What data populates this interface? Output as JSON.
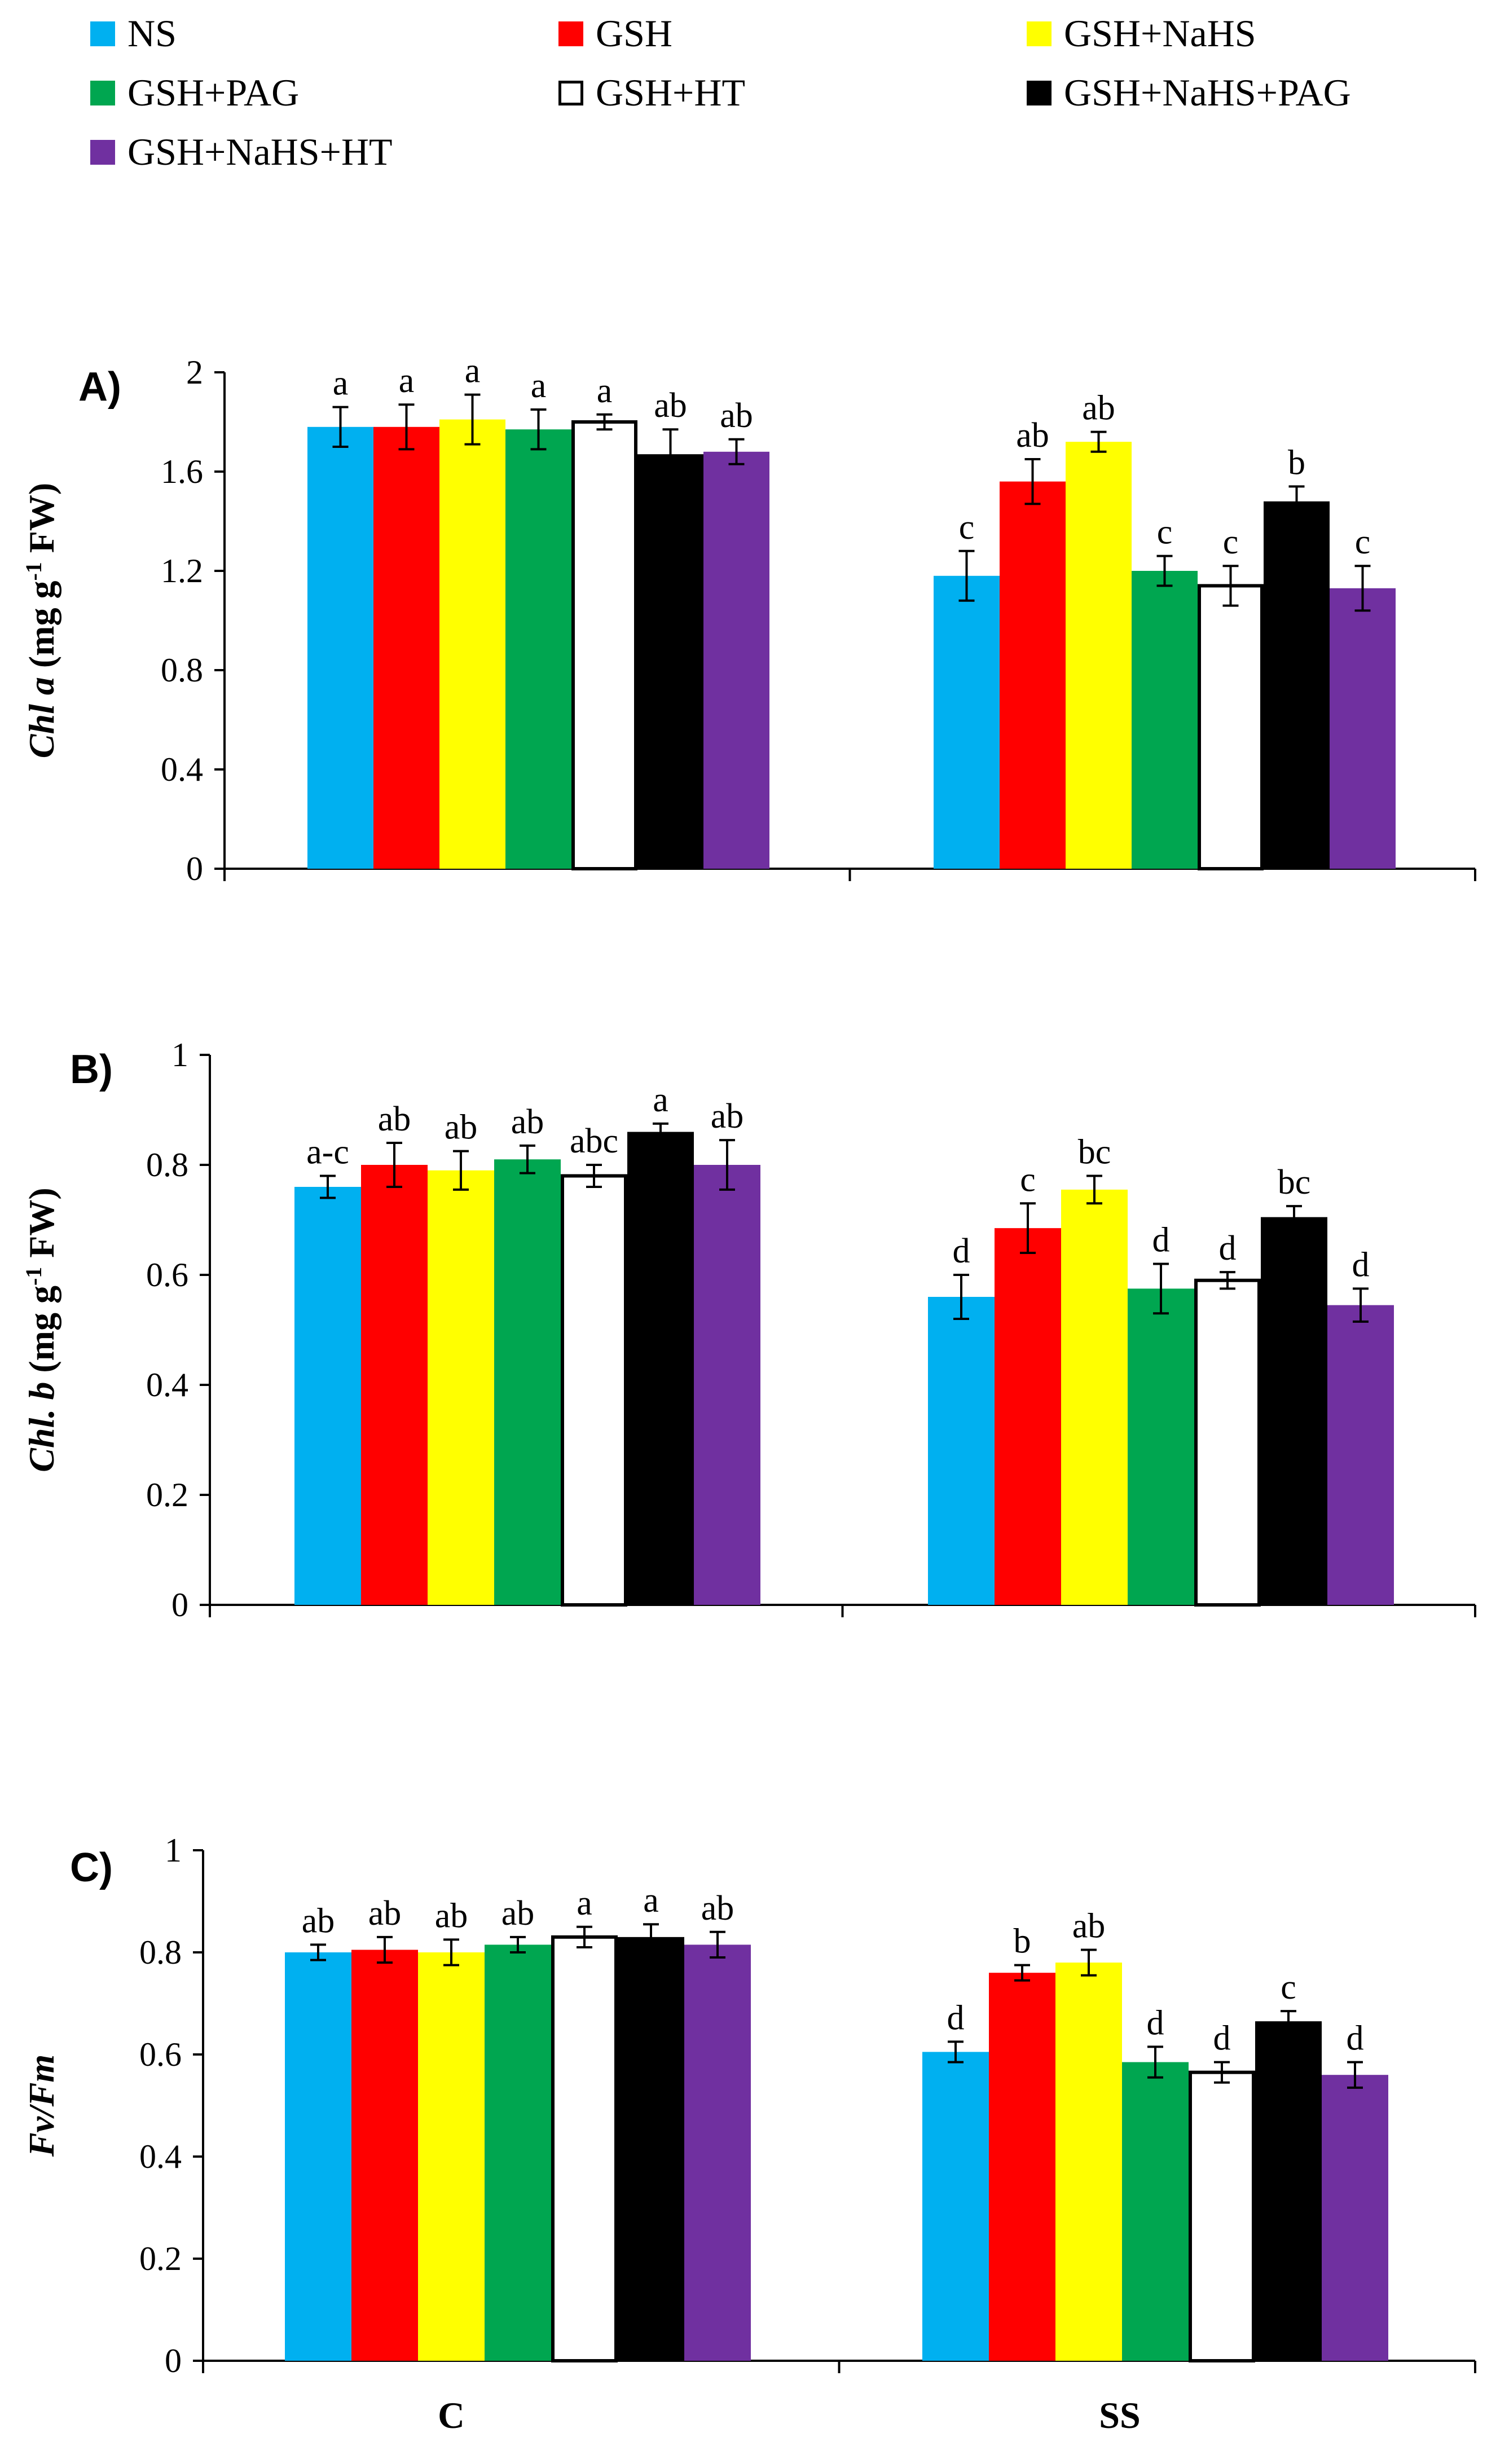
{
  "legend": [
    {
      "label": "NS",
      "color": "#00B0F0",
      "border": "#00B0F0"
    },
    {
      "label": "GSH",
      "color": "#FF0000",
      "border": "#FF0000"
    },
    {
      "label": "GSH+NaHS",
      "color": "#FFFF00",
      "border": "#FFFF00"
    },
    {
      "label": "GSH+PAG",
      "color": "#00A650",
      "border": "#00A650"
    },
    {
      "label": "GSH+HT",
      "color": "#FFFFFF",
      "border": "#000000"
    },
    {
      "label": "GSH+NaHS+PAG",
      "color": "#000000",
      "border": "#000000"
    },
    {
      "label": "GSH+NaHS+HT",
      "color": "#7030A0",
      "border": "#7030A0"
    }
  ],
  "x_categories": [
    "C",
    "SS"
  ],
  "chart_data": [
    {
      "type": "bar",
      "panel_label": "A)",
      "ylabel_italic": "Chl a",
      "ylabel_rest": " (mg g",
      "ylabel_sup": "-1",
      "ylabel_end": " FW)",
      "ylim": [
        0,
        2
      ],
      "yticks": [
        "0",
        "0.4",
        "0.8",
        "1.2",
        "1.6",
        "2"
      ],
      "yticks_values": [
        0,
        0.4,
        0.8,
        1.2,
        1.6,
        2
      ],
      "categories": [
        "C",
        "SS"
      ],
      "series": [
        {
          "name": "NS",
          "values": [
            1.78,
            1.18
          ],
          "errors": [
            0.08,
            0.1
          ],
          "letters": [
            "a",
            "c"
          ]
        },
        {
          "name": "GSH",
          "values": [
            1.78,
            1.56
          ],
          "errors": [
            0.09,
            0.09
          ],
          "letters": [
            "a",
            "ab"
          ]
        },
        {
          "name": "GSH+NaHS",
          "values": [
            1.81,
            1.72
          ],
          "errors": [
            0.1,
            0.04
          ],
          "letters": [
            "a",
            "ab"
          ]
        },
        {
          "name": "GSH+PAG",
          "values": [
            1.77,
            1.2
          ],
          "errors": [
            0.08,
            0.06
          ],
          "letters": [
            "a",
            "c"
          ]
        },
        {
          "name": "GSH+HT",
          "values": [
            1.8,
            1.14
          ],
          "errors": [
            0.03,
            0.08
          ],
          "letters": [
            "a",
            "c"
          ]
        },
        {
          "name": "GSH+NaHS+PAG",
          "values": [
            1.67,
            1.48
          ],
          "errors": [
            0.1,
            0.06
          ],
          "letters": [
            "ab",
            "b"
          ]
        },
        {
          "name": "GSH+NaHS+HT",
          "values": [
            1.68,
            1.13
          ],
          "errors": [
            0.05,
            0.09
          ],
          "letters": [
            "ab",
            "c"
          ]
        }
      ]
    },
    {
      "type": "bar",
      "panel_label": "B)",
      "ylabel_italic": "Chl. b",
      "ylabel_rest": " (mg g",
      "ylabel_sup": "-1",
      "ylabel_end": " FW)",
      "ylim": [
        0,
        1
      ],
      "yticks": [
        "0",
        "0.2",
        "0.4",
        "0.6",
        "0.8",
        "1"
      ],
      "yticks_values": [
        0,
        0.2,
        0.4,
        0.6,
        0.8,
        1
      ],
      "categories": [
        "C",
        "SS"
      ],
      "series": [
        {
          "name": "NS",
          "values": [
            0.76,
            0.56
          ],
          "errors": [
            0.02,
            0.04
          ],
          "letters": [
            "a-c",
            "d"
          ]
        },
        {
          "name": "GSH",
          "values": [
            0.8,
            0.685
          ],
          "errors": [
            0.04,
            0.045
          ],
          "letters": [
            "ab",
            "c"
          ]
        },
        {
          "name": "GSH+NaHS",
          "values": [
            0.79,
            0.755
          ],
          "errors": [
            0.035,
            0.025
          ],
          "letters": [
            "ab",
            "bc"
          ]
        },
        {
          "name": "GSH+PAG",
          "values": [
            0.81,
            0.575
          ],
          "errors": [
            0.025,
            0.045
          ],
          "letters": [
            "ab",
            "d"
          ]
        },
        {
          "name": "GSH+HT",
          "values": [
            0.78,
            0.59
          ],
          "errors": [
            0.02,
            0.015
          ],
          "letters": [
            "abc",
            "d"
          ]
        },
        {
          "name": "GSH+NaHS+PAG",
          "values": [
            0.86,
            0.705
          ],
          "errors": [
            0.015,
            0.02
          ],
          "letters": [
            "a",
            "bc"
          ]
        },
        {
          "name": "GSH+NaHS+HT",
          "values": [
            0.8,
            0.545
          ],
          "errors": [
            0.045,
            0.03
          ],
          "letters": [
            "ab",
            "d"
          ]
        }
      ]
    },
    {
      "type": "bar",
      "panel_label": "C)",
      "ylabel_italic": "Fv/Fm",
      "ylabel_rest": "",
      "ylabel_sup": "",
      "ylabel_end": "",
      "ylim": [
        0,
        1
      ],
      "yticks": [
        "0",
        "0.2",
        "0.4",
        "0.6",
        "0.8",
        "1"
      ],
      "yticks_values": [
        0,
        0.2,
        0.4,
        0.6,
        0.8,
        1
      ],
      "categories": [
        "C",
        "SS"
      ],
      "series": [
        {
          "name": "NS",
          "values": [
            0.8,
            0.605
          ],
          "errors": [
            0.015,
            0.02
          ],
          "letters": [
            "ab",
            "d"
          ]
        },
        {
          "name": "GSH",
          "values": [
            0.805,
            0.76
          ],
          "errors": [
            0.025,
            0.015
          ],
          "letters": [
            "ab",
            "b"
          ]
        },
        {
          "name": "GSH+NaHS",
          "values": [
            0.8,
            0.78
          ],
          "errors": [
            0.025,
            0.025
          ],
          "letters": [
            "ab",
            "ab"
          ]
        },
        {
          "name": "GSH+PAG",
          "values": [
            0.815,
            0.585
          ],
          "errors": [
            0.015,
            0.03
          ],
          "letters": [
            "ab",
            "d"
          ]
        },
        {
          "name": "GSH+HT",
          "values": [
            0.83,
            0.565
          ],
          "errors": [
            0.02,
            0.02
          ],
          "letters": [
            "a",
            "d"
          ]
        },
        {
          "name": "GSH+NaHS+PAG",
          "values": [
            0.83,
            0.665
          ],
          "errors": [
            0.025,
            0.02
          ],
          "letters": [
            "a",
            "c"
          ]
        },
        {
          "name": "GSH+NaHS+HT",
          "values": [
            0.815,
            0.56
          ],
          "errors": [
            0.025,
            0.025
          ],
          "letters": [
            "ab",
            "d"
          ]
        }
      ]
    }
  ]
}
